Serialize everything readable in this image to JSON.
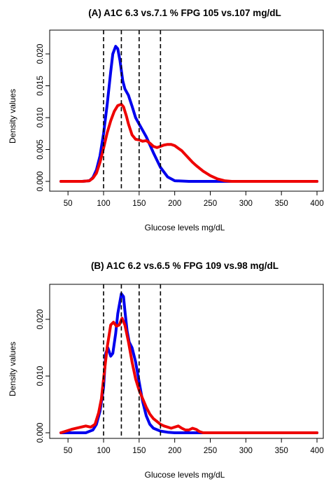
{
  "chart_data": [
    {
      "type": "line",
      "title": "(A) A1C 6.3 vs.7.1 % FPG 105 vs.107 mg/dL",
      "xlabel": "Glucose levels mg/dL",
      "ylabel": "Density values",
      "xlim": [
        40,
        400
      ],
      "ylim": [
        0,
        0.022
      ],
      "xticks": [
        50,
        100,
        150,
        200,
        250,
        300,
        350,
        400
      ],
      "yticks": [
        0.0,
        0.005,
        0.01,
        0.015,
        0.02
      ],
      "yticklabels": [
        "0.000",
        "0.005",
        "0.010",
        "0.015",
        "0.020"
      ],
      "vlines": [
        100,
        125,
        150,
        180
      ],
      "grid": false,
      "series": [
        {
          "color": "#0000ee",
          "x": [
            40,
            70,
            80,
            85,
            90,
            95,
            100,
            105,
            110,
            113,
            117,
            120,
            123,
            127,
            130,
            135,
            140,
            145,
            150,
            155,
            160,
            170,
            180,
            190,
            200,
            220,
            250,
            300,
            350,
            400
          ],
          "y": [
            0,
            0,
            0.0001,
            0.0006,
            0.0018,
            0.004,
            0.0075,
            0.012,
            0.0172,
            0.02,
            0.0212,
            0.0208,
            0.019,
            0.0158,
            0.0145,
            0.0135,
            0.0118,
            0.01,
            0.009,
            0.008,
            0.007,
            0.0045,
            0.0022,
            0.0007,
            0.0001,
            0,
            0,
            0,
            0,
            0
          ]
        },
        {
          "color": "#ee0000",
          "x": [
            40,
            70,
            80,
            85,
            90,
            95,
            100,
            105,
            110,
            115,
            120,
            125,
            128,
            132,
            135,
            140,
            145,
            150,
            155,
            160,
            165,
            170,
            175,
            180,
            185,
            190,
            195,
            200,
            205,
            210,
            215,
            220,
            225,
            230,
            240,
            250,
            260,
            270,
            280,
            300,
            350,
            400
          ],
          "y": [
            0,
            0,
            0.0001,
            0.0005,
            0.0013,
            0.003,
            0.0052,
            0.0076,
            0.0095,
            0.011,
            0.0119,
            0.0121,
            0.0117,
            0.0103,
            0.009,
            0.0073,
            0.0066,
            0.0065,
            0.0063,
            0.0064,
            0.006,
            0.0055,
            0.0053,
            0.0055,
            0.0057,
            0.0058,
            0.0058,
            0.0056,
            0.0052,
            0.0048,
            0.0042,
            0.0036,
            0.003,
            0.0025,
            0.0016,
            0.0009,
            0.0004,
            0.0001,
            0,
            0,
            0,
            0
          ]
        }
      ]
    },
    {
      "type": "line",
      "title": "(B) A1C 6.2 vs.6.5 % FPG 109 vs.98  mg/dL",
      "xlabel": "Glucose levels mg/dL",
      "ylabel": "Density values",
      "xlim": [
        40,
        400
      ],
      "ylim": [
        0,
        0.0255
      ],
      "xticks": [
        50,
        100,
        150,
        200,
        250,
        300,
        350,
        400
      ],
      "yticks": [
        0.0,
        0.01,
        0.02
      ],
      "yticklabels": [
        "0.000",
        "0.010",
        "0.020"
      ],
      "vlines": [
        100,
        125,
        150,
        180
      ],
      "grid": false,
      "series": [
        {
          "color": "#0000ee",
          "x": [
            40,
            75,
            85,
            90,
            95,
            100,
            103,
            106,
            110,
            113,
            117,
            120,
            125,
            128,
            130,
            133,
            136,
            140,
            145,
            150,
            155,
            160,
            165,
            170,
            180,
            190,
            200,
            400
          ],
          "y": [
            0,
            0,
            0.0005,
            0.0015,
            0.0038,
            0.008,
            0.014,
            0.015,
            0.0135,
            0.014,
            0.0175,
            0.021,
            0.0245,
            0.024,
            0.0215,
            0.018,
            0.016,
            0.015,
            0.0125,
            0.009,
            0.0055,
            0.003,
            0.0015,
            0.0008,
            0.0003,
            0.0001,
            0,
            0
          ]
        },
        {
          "color": "#ee0000",
          "x": [
            40,
            45,
            55,
            65,
            75,
            82,
            88,
            93,
            97,
            100,
            105,
            110,
            114,
            118,
            122,
            126,
            130,
            135,
            140,
            145,
            150,
            155,
            160,
            165,
            170,
            175,
            180,
            185,
            190,
            195,
            200,
            205,
            210,
            215,
            220,
            225,
            230,
            235,
            240,
            400
          ],
          "y": [
            0,
            0.0002,
            0.0006,
            0.0009,
            0.0012,
            0.001,
            0.0015,
            0.0035,
            0.006,
            0.0095,
            0.015,
            0.019,
            0.0195,
            0.0188,
            0.019,
            0.0202,
            0.019,
            0.016,
            0.0125,
            0.0095,
            0.0075,
            0.006,
            0.0045,
            0.0033,
            0.0025,
            0.002,
            0.0015,
            0.0012,
            0.001,
            0.0008,
            0.001,
            0.0012,
            0.0008,
            0.0005,
            0.0005,
            0.0008,
            0.0006,
            0.0002,
            0,
            0
          ]
        }
      ]
    }
  ]
}
